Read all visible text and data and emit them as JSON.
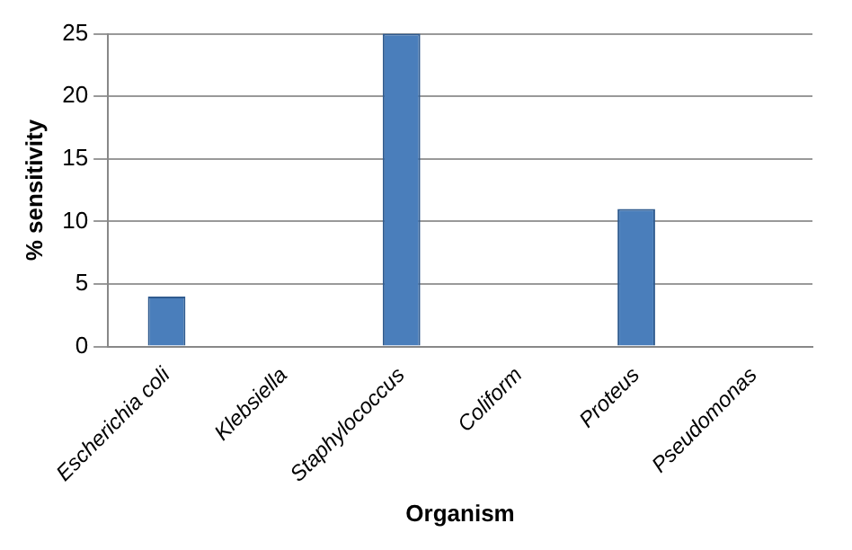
{
  "chart_data": {
    "type": "bar",
    "xlabel": "Organism",
    "ylabel": "% sensitivity",
    "categories": [
      "Escherichia coli",
      "Klebsiella",
      "Staphylococcus",
      "Coliform",
      "Proteus",
      "Pseudomonas"
    ],
    "values": [
      4,
      0,
      25,
      0,
      11,
      0
    ],
    "color": "#4a7ebb",
    "ylim": [
      0,
      25
    ],
    "yticks": [
      0,
      5,
      10,
      15,
      20,
      25
    ],
    "grid": "y",
    "legend": false
  }
}
